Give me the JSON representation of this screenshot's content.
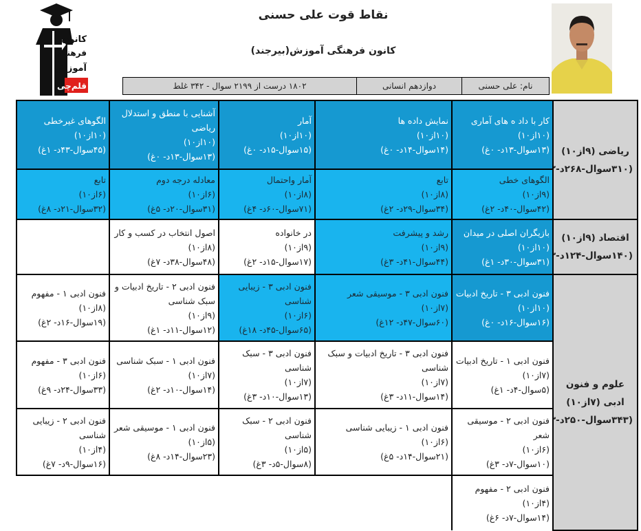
{
  "header": {
    "title": "نقاط قوت علی حسنی",
    "subtitle": "کانون فرهنگی آموزش(بیرجند)",
    "name": "نام: علی حسنی",
    "grade": "دوازدهم انسانی",
    "summary": "۱۸۰۲ درست از ۲۱۹۹ سوال - ۳۴۲ غلط",
    "logo_text": "کانون فرهنگی آموزش قلم چی"
  },
  "colors": {
    "dark": "#1699d1",
    "light": "#19b4ee",
    "label": "#d3d3d3"
  },
  "sections": [
    {
      "label": "ریاضی (۹از۱۰)",
      "stats": "(۳۱۰سوال-۲۶۸د-۲۲غ)",
      "rows": [
        [
          {
            "topic": "کار با داد ه های آماری",
            "score": "(۱۰از۱۰)",
            "detail": "(۱۳سوال-۱۳د- ۰غ)",
            "style": "dark"
          },
          {
            "topic": "نمایش داده ها",
            "score": "(۱۰از۱۰)",
            "detail": "(۱۴سوال-۱۴د- ۰غ)",
            "style": "dark"
          },
          {
            "topic": "آمار",
            "score": "(۱۰از۱۰)",
            "detail": "(۱۵سوال-۱۵د- ۰غ)",
            "style": "dark"
          },
          {
            "topic": "آشنایی با منطق و استدلال ریاضی",
            "score": "(۱۰از۱۰)",
            "detail": "(۱۳سوال-۱۳د- ۰غ)",
            "style": "dark"
          },
          {
            "topic": "الگوهای غیرخطی",
            "score": "(۱۰از۱۰)",
            "detail": "(۴۵سوال-۴۳د- ۱غ)",
            "style": "dark"
          }
        ],
        [
          {
            "topic": "الگوهای خطی",
            "score": "(۹از۱۰)",
            "detail": "(۴۲سوال-۴۰د- ۲غ)",
            "style": "light"
          },
          {
            "topic": "تابع",
            "score": "(۸از۱۰)",
            "detail": "(۳۴سوال-۲۹د- ۲غ)",
            "style": "light"
          },
          {
            "topic": "آمار واحتمال",
            "score": "(۸از۱۰)",
            "detail": "(۷۱سوال-۶۰د- ۴غ)",
            "style": "light"
          },
          {
            "topic": "معادله درجه دوم",
            "score": "(۶از۱۰)",
            "detail": "(۳۱سوال-۲۰د- ۵غ)",
            "style": "light"
          },
          {
            "topic": "تابع",
            "score": "(۶از۱۰)",
            "detail": "(۳۲سوال-۲۱د- ۸غ)",
            "style": "light"
          }
        ]
      ]
    },
    {
      "label": "اقتصاد (۹از۱۰)",
      "stats": "(۱۴۰سوال-۱۲۴د-۱۳غ)",
      "rows": [
        [
          {
            "topic": "بازیگران اصلی در میدان",
            "score": "(۱۰از۱۰)",
            "detail": "(۳۱سوال-۳۰د- ۱غ)",
            "style": "dark"
          },
          {
            "topic": "رشد و پیشرفت",
            "score": "(۹از۱۰)",
            "detail": "(۴۴سوال-۴۱د- ۳غ)",
            "style": "light"
          },
          {
            "topic": "در خانواده",
            "score": "(۹از۱۰)",
            "detail": "(۱۷سوال-۱۵د- ۲غ)",
            "style": "white"
          },
          {
            "topic": "اصول انتخاب در کسب و کار",
            "score": "(۸از۱۰)",
            "detail": "(۴۸سوال-۳۸د- ۷غ)",
            "style": "white"
          },
          null
        ]
      ]
    },
    {
      "label": "علوم و فنون ادبی (۷از۱۰)",
      "stats": "(۳۴۳سوال-۲۵۰د-۸۳غ)",
      "rows": [
        [
          {
            "topic": "فنون ادبی ۳ - تاریخ ادبیات",
            "score": "(۱۰از۱۰)",
            "detail": "(۱۶سوال-۱۶د- ۰غ)",
            "style": "dark"
          },
          {
            "topic": "فنون ادبی ۳ - موسیقی شعر",
            "score": "(۷از۱۰)",
            "detail": "(۶۰سوال-۴۷د- ۱۲غ)",
            "style": "light"
          },
          {
            "topic": "فنون ادبی ۳ - زیبایی شناسی",
            "score": "(۶از۱۰)",
            "detail": "(۶۵سوال-۴۵د- ۱۸غ)",
            "style": "light"
          },
          {
            "topic": "فنون ادبی ۲ - تاریخ ادبیات و سبک شناسی",
            "score": "(۹از۱۰)",
            "detail": "(۱۲سوال-۱۱د- ۱غ)",
            "style": "white"
          },
          {
            "topic": "فنون ادبی ۱ - مفهوم",
            "score": "(۸از۱۰)",
            "detail": "(۱۹سوال-۱۶د- ۲غ)",
            "style": "white"
          }
        ],
        [
          {
            "topic": "فنون ادبی ۱ - تاریخ ادبیات",
            "score": "(۷از۱۰)",
            "detail": "(۵سوال-۴د- ۱غ)",
            "style": "white"
          },
          {
            "topic": "فنون ادبی ۳ - تاریخ ادبیات و سبک شناسی",
            "score": "(۷از۱۰)",
            "detail": "(۱۴سوال-۱۱د- ۳غ)",
            "style": "white"
          },
          {
            "topic": "فنون ادبی ۳ - سبک شناسی",
            "score": "(۷از۱۰)",
            "detail": "(۱۳سوال-۱۰د- ۳غ)",
            "style": "white"
          },
          {
            "topic": "فنون ادبی ۱ - سبک شناسی",
            "score": "(۷از۱۰)",
            "detail": "(۱۴سوال-۱۰د- ۲غ)",
            "style": "white"
          },
          {
            "topic": "فنون ادبی ۳ - مفهوم",
            "score": "(۶از۱۰)",
            "detail": "(۳۳سوال-۲۴د- ۹غ)",
            "style": "white"
          }
        ],
        [
          {
            "topic": "فنون ادبی ۲ - موسیقی شعر",
            "score": "(۶از۱۰)",
            "detail": "(۱۰سوال-۷د- ۳غ)",
            "style": "white"
          },
          {
            "topic": "فنون ادبی ۱ - زیبایی شناسی",
            "score": "(۶از۱۰)",
            "detail": "(۲۱سوال-۱۴د- ۵غ)",
            "style": "white"
          },
          {
            "topic": "فنون ادبی ۲ - سبک شناسی",
            "score": "(۵از۱۰)",
            "detail": "(۸سوال-۵د- ۳غ)",
            "style": "white"
          },
          {
            "topic": "فنون ادبی ۱ - موسیقی شعر",
            "score": "(۵از۱۰)",
            "detail": "(۲۳سوال-۱۴د- ۸غ)",
            "style": "white"
          },
          {
            "topic": "فنون ادبی ۲ - زیبایی شناسی",
            "score": "(۴از۱۰)",
            "detail": "(۱۶سوال-۹د- ۷غ)",
            "style": "white"
          }
        ],
        [
          {
            "topic": "فنون ادبی ۲ - مفهوم",
            "score": "(۴از۱۰)",
            "detail": "(۱۴سوال-۷د- ۶غ)",
            "style": "white"
          },
          null,
          null,
          null,
          null
        ]
      ]
    }
  ]
}
